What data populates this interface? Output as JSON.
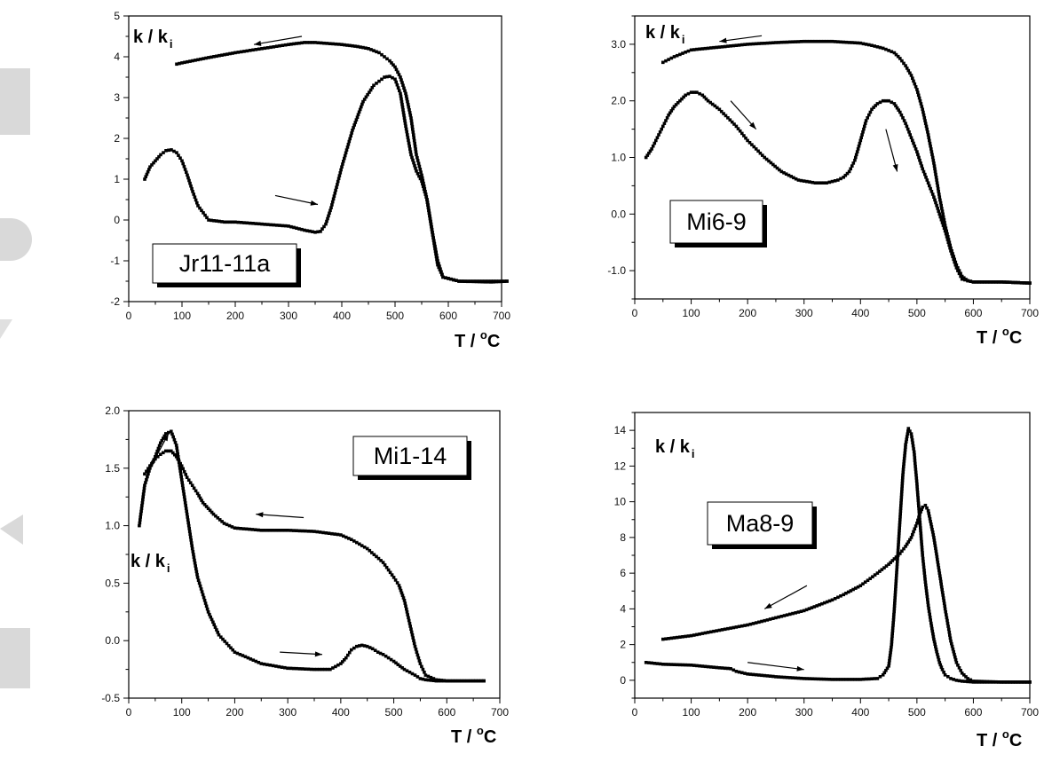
{
  "figure": {
    "decor_color": "#d9d9d9",
    "ink_color": "#000000"
  },
  "chart_data": [
    {
      "type": "line",
      "label": "Jr11-11a",
      "ylabel_main": "k / k",
      "ylabel_sub": "i",
      "xlabel_main": "T / ",
      "xlabel_sup": "o",
      "xlabel_unit": "C",
      "xlim": [
        0,
        700
      ],
      "ylim": [
        -2,
        5
      ],
      "xticks": [
        0,
        100,
        200,
        300,
        400,
        500,
        600,
        700
      ],
      "yticks": [
        -2,
        -1,
        0,
        1,
        2,
        3,
        4,
        5
      ],
      "ytick_labels": [
        "-2",
        "-1",
        "0",
        "1",
        "2",
        "3",
        "4",
        "5"
      ],
      "series": [
        {
          "direction": "heating",
          "x": [
            30,
            40,
            50,
            60,
            70,
            80,
            90,
            100,
            110,
            120,
            130,
            150,
            180,
            200,
            250,
            300,
            330,
            350,
            360,
            370,
            380,
            390,
            400,
            420,
            440,
            460,
            470,
            480,
            490,
            500,
            510,
            520,
            530,
            540,
            550,
            560,
            570,
            580,
            590,
            620,
            680,
            710
          ],
          "y": [
            1.0,
            1.3,
            1.45,
            1.6,
            1.7,
            1.72,
            1.65,
            1.45,
            1.1,
            0.7,
            0.35,
            -0.0,
            -0.05,
            -0.05,
            -0.1,
            -0.15,
            -0.25,
            -0.3,
            -0.28,
            -0.1,
            0.3,
            0.8,
            1.3,
            2.2,
            2.9,
            3.3,
            3.4,
            3.5,
            3.52,
            3.45,
            3.1,
            2.3,
            1.6,
            1.2,
            0.95,
            0.5,
            -0.3,
            -1.1,
            -1.4,
            -1.5,
            -1.5,
            -1.5
          ]
        },
        {
          "direction": "cooling",
          "x": [
            710,
            680,
            620,
            590,
            580,
            570,
            560,
            550,
            540,
            530,
            520,
            510,
            500,
            490,
            480,
            470,
            450,
            430,
            400,
            350,
            330,
            300,
            250,
            200,
            150,
            100,
            90
          ],
          "y": [
            -1.5,
            -1.52,
            -1.5,
            -1.4,
            -1.0,
            -0.3,
            0.5,
            1.1,
            1.6,
            2.5,
            3.1,
            3.5,
            3.75,
            3.9,
            4.0,
            4.1,
            4.2,
            4.25,
            4.3,
            4.35,
            4.35,
            4.3,
            4.2,
            4.1,
            3.98,
            3.85,
            3.82
          ]
        }
      ],
      "arrows": [
        {
          "x1": 325,
          "y1": 4.5,
          "x2": 235,
          "y2": 4.3
        },
        {
          "x1": 275,
          "y1": 0.6,
          "x2": 355,
          "y2": 0.38
        }
      ]
    },
    {
      "type": "line",
      "label": "Mi6-9",
      "ylabel_main": "k / k",
      "ylabel_sub": "i",
      "xlabel_main": "T / ",
      "xlabel_sup": "o",
      "xlabel_unit": "C",
      "xlim": [
        0,
        700
      ],
      "ylim": [
        -1.5,
        3.5
      ],
      "xticks": [
        0,
        100,
        200,
        300,
        400,
        500,
        600,
        700
      ],
      "yticks": [
        -1,
        0,
        1,
        2,
        3
      ],
      "ytick_labels": [
        "-1.0",
        "0.0",
        "1.0",
        "2.0",
        "3.0"
      ],
      "series": [
        {
          "direction": "heating",
          "x": [
            20,
            30,
            40,
            50,
            60,
            70,
            80,
            90,
            100,
            110,
            120,
            130,
            150,
            180,
            200,
            230,
            260,
            290,
            320,
            340,
            360,
            370,
            380,
            390,
            400,
            410,
            420,
            430,
            440,
            450,
            460,
            470,
            480,
            490,
            500,
            510,
            520,
            530,
            540,
            550,
            560,
            570,
            580,
            600,
            650,
            700
          ],
          "y": [
            1.0,
            1.15,
            1.35,
            1.55,
            1.75,
            1.9,
            2.0,
            2.1,
            2.15,
            2.15,
            2.1,
            2.0,
            1.85,
            1.55,
            1.3,
            1.0,
            0.75,
            0.6,
            0.55,
            0.55,
            0.6,
            0.65,
            0.75,
            0.95,
            1.3,
            1.65,
            1.85,
            1.95,
            2.0,
            2.0,
            1.95,
            1.8,
            1.6,
            1.35,
            1.1,
            0.8,
            0.55,
            0.3,
            0.0,
            -0.3,
            -0.65,
            -0.95,
            -1.15,
            -1.2,
            -1.2,
            -1.22
          ]
        },
        {
          "direction": "cooling",
          "x": [
            700,
            650,
            600,
            590,
            580,
            570,
            560,
            550,
            540,
            530,
            520,
            510,
            500,
            490,
            480,
            470,
            460,
            440,
            420,
            400,
            350,
            300,
            250,
            200,
            150,
            100,
            70,
            50
          ],
          "y": [
            -1.22,
            -1.2,
            -1.2,
            -1.18,
            -1.1,
            -0.9,
            -0.6,
            -0.2,
            0.3,
            0.9,
            1.4,
            1.85,
            2.2,
            2.45,
            2.62,
            2.75,
            2.85,
            2.93,
            2.98,
            3.02,
            3.05,
            3.05,
            3.03,
            3.0,
            2.95,
            2.9,
            2.78,
            2.68
          ]
        }
      ],
      "arrows": [
        {
          "x1": 225,
          "y1": 3.15,
          "x2": 150,
          "y2": 3.05
        },
        {
          "x1": 170,
          "y1": 2.0,
          "x2": 215,
          "y2": 1.5
        },
        {
          "x1": 445,
          "y1": 1.5,
          "x2": 465,
          "y2": 0.75
        }
      ]
    },
    {
      "type": "line",
      "label": "Mi1-14",
      "ylabel_main": "k / k",
      "ylabel_sub": "i",
      "xlabel_main": "T / ",
      "xlabel_sup": "o",
      "xlabel_unit": "C",
      "xlim": [
        0,
        700
      ],
      "ylim": [
        -0.5,
        2.0
      ],
      "xticks": [
        0,
        100,
        200,
        300,
        400,
        500,
        600,
        700
      ],
      "yticks": [
        -0.5,
        0.0,
        0.5,
        1.0,
        1.5,
        2.0
      ],
      "ytick_labels": [
        "-0.5",
        "0.0",
        "0.5",
        "1.0",
        "1.5",
        "2.0"
      ],
      "series": [
        {
          "direction": "heating",
          "x": [
            20,
            30,
            40,
            50,
            60,
            70,
            80,
            90,
            100,
            110,
            120,
            130,
            140,
            150,
            170,
            200,
            250,
            300,
            350,
            380,
            400,
            410,
            420,
            430,
            440,
            450,
            460,
            470,
            480,
            500,
            520,
            540,
            550,
            560,
            580,
            600,
            650,
            670
          ],
          "y": [
            1.0,
            1.35,
            1.5,
            1.6,
            1.72,
            1.8,
            1.82,
            1.7,
            1.4,
            1.1,
            0.8,
            0.55,
            0.4,
            0.25,
            0.05,
            -0.1,
            -0.2,
            -0.24,
            -0.25,
            -0.25,
            -0.2,
            -0.15,
            -0.08,
            -0.05,
            -0.04,
            -0.05,
            -0.07,
            -0.1,
            -0.12,
            -0.18,
            -0.25,
            -0.3,
            -0.33,
            -0.34,
            -0.35,
            -0.35,
            -0.35,
            -0.35
          ]
        },
        {
          "direction": "cooling",
          "x": [
            670,
            650,
            600,
            580,
            560,
            550,
            540,
            530,
            520,
            510,
            500,
            480,
            450,
            420,
            400,
            350,
            300,
            250,
            200,
            180,
            160,
            150,
            140,
            130,
            120,
            110,
            100,
            90,
            80,
            70,
            60,
            50,
            40,
            30
          ],
          "y": [
            -0.35,
            -0.35,
            -0.35,
            -0.34,
            -0.3,
            -0.2,
            -0.05,
            0.15,
            0.35,
            0.48,
            0.55,
            0.68,
            0.8,
            0.88,
            0.92,
            0.95,
            0.96,
            0.96,
            0.98,
            1.02,
            1.1,
            1.15,
            1.2,
            1.28,
            1.35,
            1.42,
            1.52,
            1.6,
            1.65,
            1.65,
            1.62,
            1.58,
            1.52,
            1.45
          ]
        }
      ],
      "arrows": [
        {
          "x1": 40,
          "y1": 1.5,
          "x2": 75,
          "y2": 1.8
        },
        {
          "x1": 330,
          "y1": 1.07,
          "x2": 240,
          "y2": 1.1
        },
        {
          "x1": 285,
          "y1": -0.1,
          "x2": 365,
          "y2": -0.12
        }
      ]
    },
    {
      "type": "line",
      "label": "Ma8-9",
      "ylabel_main": "k / k",
      "ylabel_sub": "i",
      "xlabel_main": "T / ",
      "xlabel_sup": "o",
      "xlabel_unit": "C",
      "xlim": [
        0,
        700
      ],
      "ylim": [
        -1,
        15
      ],
      "xticks": [
        0,
        100,
        200,
        300,
        400,
        500,
        600,
        700
      ],
      "yticks": [
        0,
        2,
        4,
        6,
        8,
        10,
        12,
        14
      ],
      "ytick_labels": [
        "0",
        "2",
        "4",
        "6",
        "8",
        "10",
        "12",
        "14"
      ],
      "series": [
        {
          "direction": "heating",
          "x": [
            20,
            50,
            100,
            150,
            170,
            180,
            200,
            250,
            300,
            350,
            400,
            430,
            440,
            450,
            455,
            460,
            465,
            470,
            475,
            480,
            485,
            490,
            495,
            500,
            505,
            510,
            515,
            520,
            525,
            530,
            535,
            540,
            545,
            550,
            560,
            570,
            580,
            600,
            650,
            700
          ],
          "y": [
            1.0,
            0.9,
            0.85,
            0.7,
            0.65,
            0.5,
            0.35,
            0.2,
            0.1,
            0.05,
            0.05,
            0.1,
            0.3,
            0.8,
            2.0,
            4.0,
            6.5,
            9.0,
            11.5,
            13.2,
            14.1,
            13.8,
            12.8,
            11.0,
            9.0,
            7.0,
            5.5,
            4.2,
            3.2,
            2.3,
            1.6,
            1.0,
            0.6,
            0.3,
            0.1,
            0.0,
            -0.05,
            -0.1,
            -0.1,
            -0.1
          ]
        },
        {
          "direction": "cooling",
          "x": [
            700,
            650,
            600,
            590,
            580,
            570,
            560,
            550,
            540,
            530,
            520,
            515,
            510,
            505,
            500,
            490,
            480,
            470,
            460,
            450,
            430,
            400,
            370,
            350,
            300,
            250,
            200,
            150,
            100,
            50
          ],
          "y": [
            -0.1,
            -0.1,
            -0.05,
            0.1,
            0.4,
            1.0,
            2.2,
            4.0,
            6.0,
            8.0,
            9.5,
            9.8,
            9.7,
            9.3,
            8.8,
            8.0,
            7.5,
            7.1,
            6.8,
            6.5,
            6.0,
            5.3,
            4.8,
            4.5,
            3.9,
            3.5,
            3.1,
            2.8,
            2.5,
            2.3
          ]
        }
      ],
      "arrows": [
        {
          "x1": 305,
          "y1": 5.3,
          "x2": 230,
          "y2": 4.0
        },
        {
          "x1": 200,
          "y1": 1.0,
          "x2": 300,
          "y2": 0.6
        }
      ]
    }
  ]
}
